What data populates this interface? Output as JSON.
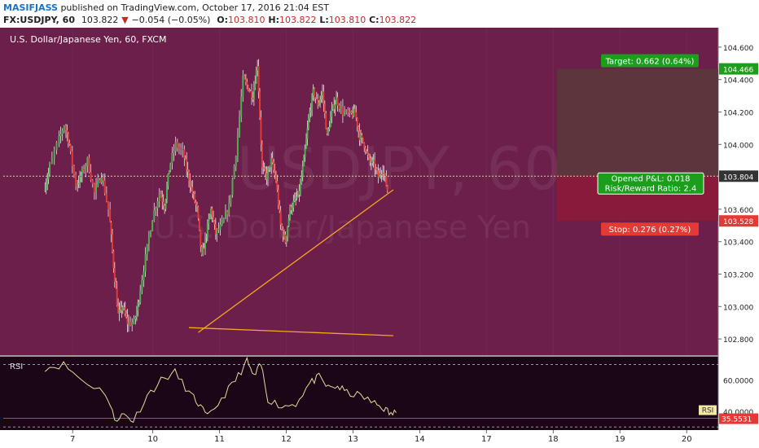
{
  "header": {
    "author": "MASIFJASS",
    "published_text": "published on TradingView.com, October 17, 2016 21:04 EST",
    "symbol": "FX:USDJPY, 60",
    "last_price": "103.822",
    "change_arrow": "▼",
    "change": "−0.054 (−0.05%)",
    "o_label": "O:",
    "o_value": "103.810",
    "h_label": "H:",
    "h_value": "103.822",
    "l_label": "L:",
    "l_value": "103.810",
    "c_label": "C:",
    "c_value": "103.822"
  },
  "colors": {
    "main_bg": "#6b1f4a",
    "rsi_bg": "#1a0616",
    "bull": "#4caf50",
    "bear": "#e53935",
    "trendline": "#f5a623",
    "target_box": "#5a3a3a",
    "stop_box": "#8e1a3a",
    "target_label": "#1b9e1b",
    "stop_label": "#e53935"
  },
  "chart_data": [
    {
      "type": "candlestick",
      "title": "U.S. Dollar/Japanese Yen, 60, FXCM",
      "watermark_top": "USDJPY, 60",
      "watermark_bottom": "U.S. Dollar/Japanese Yen",
      "ylim": [
        102.7,
        104.72
      ],
      "y_ticks": [
        "104.600",
        "104.400",
        "104.200",
        "104.000",
        "103.600",
        "103.400",
        "103.200",
        "103.000",
        "102.800"
      ],
      "x_ticks": [
        "7",
        "10",
        "11",
        "12",
        "13",
        "14",
        "17",
        "18",
        "19",
        "20"
      ],
      "price_labels": [
        {
          "label": "104.466",
          "price": 104.466,
          "style": "target"
        },
        {
          "label": "103.804",
          "price": 103.804,
          "style": "current"
        },
        {
          "label": "103.528",
          "price": 103.528,
          "style": "stop"
        }
      ],
      "position": {
        "entry": 103.804,
        "target": 104.466,
        "stop": 103.528,
        "target_label": "Target: 0.662 (0.64%)",
        "stop_label": "Stop: 0.276 (0.27%)",
        "pnl_label": "Opened P&L: 0.018",
        "rr_label": "Risk/Reward Ratio: 2.4"
      },
      "trendlines": [
        {
          "from_x": 9.8,
          "from_y": 102.84,
          "to_x": 18.3,
          "to_y": 103.72
        },
        {
          "from_x": 9.6,
          "from_y": 102.87,
          "to_x": 10.0,
          "to_y": 102.82
        }
      ],
      "waypoints": [
        [
          6.5,
          103.72
        ],
        [
          6.6,
          103.82
        ],
        [
          6.8,
          104.0
        ],
        [
          6.95,
          104.12
        ],
        [
          7.05,
          104.0
        ],
        [
          7.2,
          103.75
        ],
        [
          7.3,
          103.8
        ],
        [
          7.45,
          103.9
        ],
        [
          7.6,
          103.7
        ],
        [
          7.75,
          103.82
        ],
        [
          7.9,
          103.6
        ],
        [
          8.0,
          103.25
        ],
        [
          8.1,
          102.95
        ],
        [
          8.2,
          103.0
        ],
        [
          8.3,
          102.9
        ],
        [
          8.45,
          102.9
        ],
        [
          8.55,
          103.05
        ],
        [
          8.7,
          103.3
        ],
        [
          8.85,
          103.55
        ],
        [
          9.0,
          103.7
        ],
        [
          9.1,
          103.62
        ],
        [
          9.2,
          103.85
        ],
        [
          9.35,
          104.0
        ],
        [
          9.5,
          103.95
        ],
        [
          9.6,
          103.82
        ],
        [
          9.7,
          103.7
        ],
        [
          9.8,
          103.6
        ],
        [
          9.9,
          103.3
        ],
        [
          10.0,
          103.45
        ],
        [
          10.1,
          103.6
        ],
        [
          10.2,
          103.45
        ],
        [
          10.35,
          103.5
        ],
        [
          10.5,
          103.62
        ],
        [
          10.65,
          103.95
        ],
        [
          10.8,
          104.4
        ],
        [
          10.9,
          104.35
        ],
        [
          11.0,
          104.3
        ],
        [
          11.1,
          104.5
        ],
        [
          11.2,
          103.85
        ],
        [
          11.3,
          103.8
        ],
        [
          11.4,
          103.9
        ],
        [
          11.5,
          103.78
        ],
        [
          11.6,
          103.5
        ],
        [
          11.7,
          103.4
        ],
        [
          11.8,
          103.6
        ],
        [
          11.9,
          103.65
        ],
        [
          12.0,
          103.7
        ],
        [
          12.1,
          103.9
        ],
        [
          12.2,
          104.15
        ],
        [
          12.3,
          104.32
        ],
        [
          12.4,
          104.25
        ],
        [
          12.5,
          104.32
        ],
        [
          12.6,
          104.05
        ],
        [
          12.7,
          104.2
        ],
        [
          12.8,
          104.28
        ],
        [
          12.95,
          104.2
        ],
        [
          13.1,
          104.18
        ],
        [
          13.2,
          104.2
        ],
        [
          13.3,
          104.05
        ],
        [
          13.4,
          104.0
        ],
        [
          13.5,
          103.9
        ],
        [
          13.6,
          103.88
        ],
        [
          13.7,
          103.8
        ],
        [
          13.8,
          103.85
        ],
        [
          13.9,
          103.72
        ]
      ]
    },
    {
      "type": "line",
      "title": "RSI",
      "ylim": [
        28,
        75
      ],
      "y_ticks": [
        "60.0000",
        "40.0000"
      ],
      "guides": [
        70,
        30
      ],
      "value_label": "35.5531",
      "value": 35.5531,
      "waypoints": [
        [
          6.5,
          68
        ],
        [
          6.9,
          70
        ],
        [
          7.3,
          60
        ],
        [
          7.8,
          52
        ],
        [
          8.0,
          35
        ],
        [
          8.2,
          38
        ],
        [
          8.4,
          34
        ],
        [
          8.7,
          50
        ],
        [
          9.0,
          60
        ],
        [
          9.3,
          65
        ],
        [
          9.6,
          52
        ],
        [
          9.8,
          45
        ],
        [
          10.0,
          36
        ],
        [
          10.3,
          48
        ],
        [
          10.6,
          60
        ],
        [
          10.85,
          72
        ],
        [
          11.0,
          62
        ],
        [
          11.15,
          70
        ],
        [
          11.3,
          48
        ],
        [
          11.6,
          43
        ],
        [
          11.9,
          45
        ],
        [
          12.2,
          58
        ],
        [
          12.4,
          62
        ],
        [
          12.6,
          55
        ],
        [
          12.8,
          56
        ],
        [
          13.0,
          52
        ],
        [
          13.3,
          50
        ],
        [
          13.6,
          45
        ],
        [
          13.8,
          42
        ],
        [
          13.95,
          38
        ],
        [
          14.1,
          40
        ]
      ]
    }
  ]
}
